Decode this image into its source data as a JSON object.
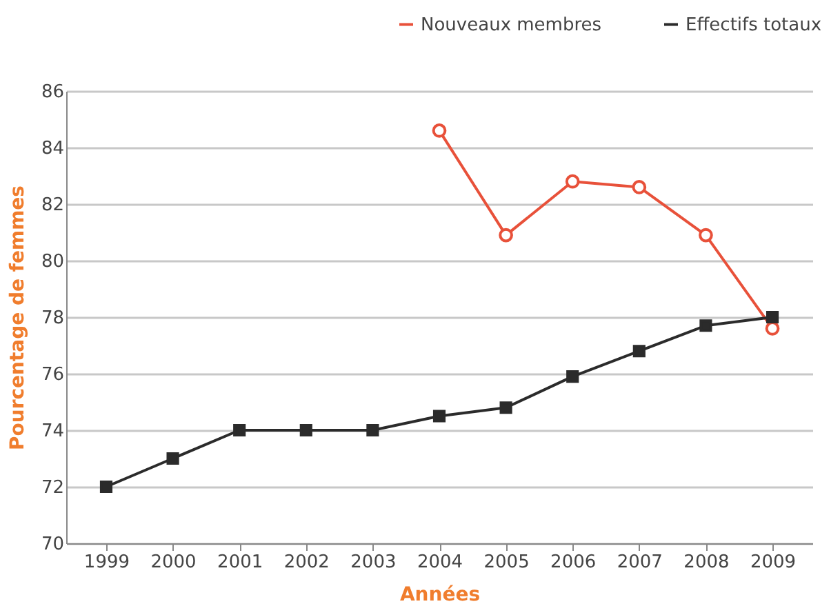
{
  "chart_data": {
    "type": "line",
    "xlabel": "Années",
    "ylabel": "Pourcentage de femmes",
    "categories": [
      "1999",
      "2000",
      "2001",
      "2002",
      "2003",
      "2004",
      "2005",
      "2006",
      "2007",
      "2008",
      "2009"
    ],
    "series": [
      {
        "name": "Nouveaux membres",
        "color": "#e8513a",
        "marker": "circle",
        "values": [
          null,
          null,
          null,
          null,
          null,
          84.6,
          80.9,
          82.8,
          82.6,
          80.9,
          77.6
        ]
      },
      {
        "name": "Effectifs totaux",
        "color": "#2b2b2b",
        "marker": "square",
        "values": [
          72,
          73,
          74,
          74,
          74,
          74.5,
          74.8,
          75.9,
          76.8,
          77.7,
          78
        ]
      }
    ],
    "ylim": [
      70,
      86
    ],
    "yticks": [
      70,
      72,
      74,
      76,
      78,
      80,
      82,
      84,
      86
    ],
    "grid": "y",
    "legend": "top right",
    "line_style": "solid"
  }
}
